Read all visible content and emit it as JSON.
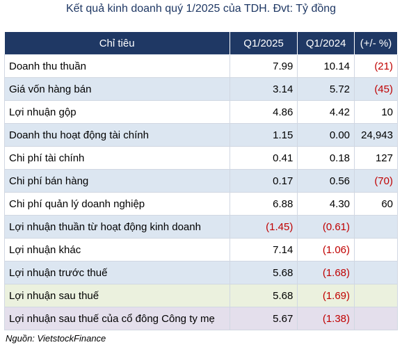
{
  "title": "Kết quả kinh doanh quý 1/2025 của TDH. Đvt: Tỷ đồng",
  "table": {
    "header": [
      "Chỉ tiêu",
      "Q1/2025",
      "Q1/2024",
      "(+/- %)"
    ],
    "rows": [
      [
        "Doanh thu thuần",
        "7.99",
        "10.14",
        "(21)"
      ],
      [
        "Giá vốn hàng bán",
        "3.14",
        "5.72",
        "(45)"
      ],
      [
        "Lợi nhuận gộp",
        "4.86",
        "4.42",
        "10"
      ],
      [
        "Doanh thu hoạt động tài chính",
        "1.15",
        "0.00",
        "24,943"
      ],
      [
        "Chi phí tài chính",
        "0.41",
        "0.18",
        "127"
      ],
      [
        "Chi phí bán hàng",
        "0.17",
        "0.56",
        "(70)"
      ],
      [
        "Chi phí quản lý doanh nghiệp",
        "6.88",
        "4.30",
        "60"
      ],
      [
        "Lợi nhuận thuần từ hoạt động kinh doanh",
        "(1.45)",
        "(0.61)",
        ""
      ],
      [
        "Lợi nhuận khác",
        "7.14",
        "(1.06)",
        ""
      ],
      [
        "Lợi nhuận trước thuế",
        "5.68",
        "(1.68)",
        ""
      ],
      [
        "Lợi nhuận sau thuế",
        "5.68",
        "(1.69)",
        ""
      ],
      [
        "Lợi nhuận sau thuế của cổ đông Công ty mẹ",
        "5.67",
        "(1.38)",
        ""
      ]
    ]
  },
  "source": "Nguồn: VietstockFinance"
}
